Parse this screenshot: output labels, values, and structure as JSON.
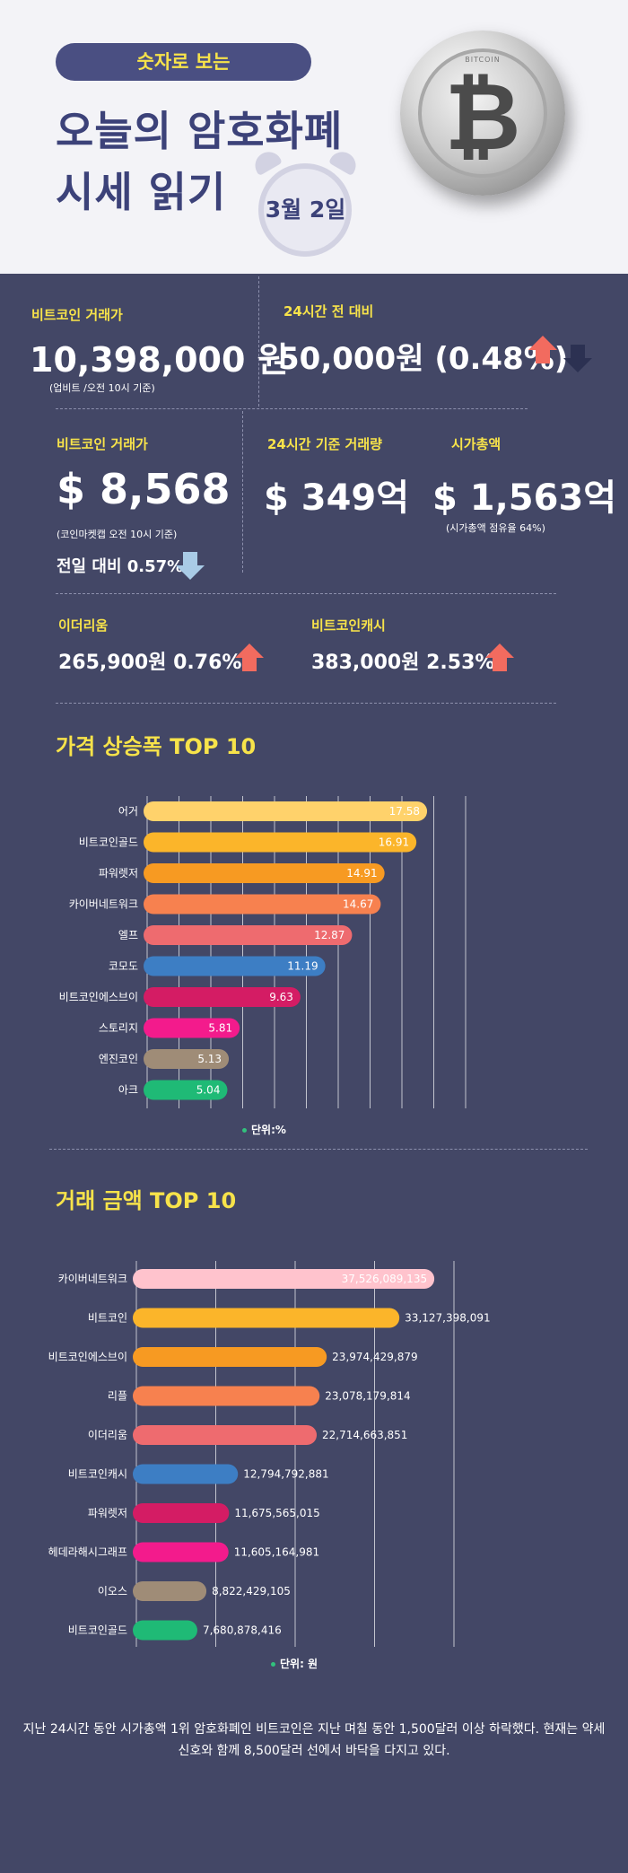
{
  "header": {
    "badge": "숫자로 보는",
    "title_line1": "오늘의 암호화폐",
    "title_line2": "시세 읽기",
    "date": "3월 2일",
    "coin_text": "BITCOIN"
  },
  "stats": {
    "upbit": {
      "label": "비트코인 거래가",
      "value": "10,398,000 원",
      "note": "(업비트 /오전 10시 기준)"
    },
    "change24": {
      "label": "24시간 전 대비",
      "value": "50,000원 (0.48%)"
    },
    "usd": {
      "label": "비트코인 거래가",
      "value": "$ 8,568",
      "note": "(코인마켓캡 오전 10시 기준)",
      "prev_day": "전일 대비 0.57%"
    },
    "volume": {
      "label": "24시간 기준 거래량",
      "value": "$ 349억"
    },
    "market_cap": {
      "label": "시가총액",
      "value": "$ 1,563억",
      "note": "(시가총액 점유율 64%)"
    },
    "eth": {
      "label": "이더리움",
      "value": "265,900원  0.76%"
    },
    "bch": {
      "label": "비트코인캐시",
      "value": "383,000원  2.53%"
    }
  },
  "chart1_title": "가격 상승폭 TOP 10",
  "chart1_unit": "단위:%",
  "chart2_title": "거래 금액 TOP 10",
  "chart2_unit": "단위: 원",
  "chart_data": [
    {
      "type": "bar",
      "title": "가격 상승폭 TOP 10",
      "unit": "단위:%",
      "categories": [
        "어거",
        "비트코인골드",
        "파워렛저",
        "카이버네트워크",
        "엘프",
        "코모도",
        "비트코인에스브이",
        "스토리지",
        "엔진코인",
        "아크"
      ],
      "values": [
        17.58,
        16.91,
        14.91,
        14.67,
        12.87,
        11.19,
        9.63,
        5.81,
        5.13,
        5.04
      ],
      "labels": [
        "17.58",
        "16.91",
        "14.91",
        "14.67",
        "12.87",
        "11.19",
        "9.63",
        "5.81",
        "5.13",
        "5.04"
      ],
      "colors": [
        "#ffd26b",
        "#fbb52a",
        "#f79a22",
        "#f7814f",
        "#ee6b6f",
        "#3d7ec4",
        "#d41c64",
        "#f31b8c",
        "#9f8c77",
        "#1fba76"
      ],
      "xlim": [
        0,
        20
      ]
    },
    {
      "type": "bar",
      "title": "거래 금액 TOP 10",
      "unit": "단위: 원",
      "categories": [
        "카이버네트워크",
        "비트코인",
        "비트코인에스브이",
        "리플",
        "이더리움",
        "비트코인캐시",
        "파워렛저",
        "헤데라해시그래프",
        "이오스",
        "비트코인골드"
      ],
      "values": [
        37526089135,
        33127398091,
        23974429879,
        23078179814,
        22714663851,
        12794792881,
        11675565015,
        11605164981,
        8822429105,
        7680878416
      ],
      "labels": [
        "37,526,089,135",
        "33,127,398,091",
        "23,974,429,879",
        "23,078,179,814",
        "22,714,663,851",
        "12,794,792,881",
        "11,675,565,015",
        "11,605,164,981",
        "8,822,429,105",
        "7,680,878,416"
      ],
      "colors": [
        "#ffc3cd",
        "#fbb52a",
        "#f79a22",
        "#f7814f",
        "#ee6b6f",
        "#3d7ec4",
        "#d41c64",
        "#f31b8c",
        "#9f8c77",
        "#1fba76"
      ],
      "xlim": [
        0,
        40000000000
      ]
    }
  ],
  "footer": "지난 24시간 동안 시가총액 1위 암호화폐인 비트코인은 지난 며칠 동안 1,500달러 이상 하락했다. 현재는 약세 신호와 함께 8,500달러 선에서 바닥을 다지고 있다."
}
